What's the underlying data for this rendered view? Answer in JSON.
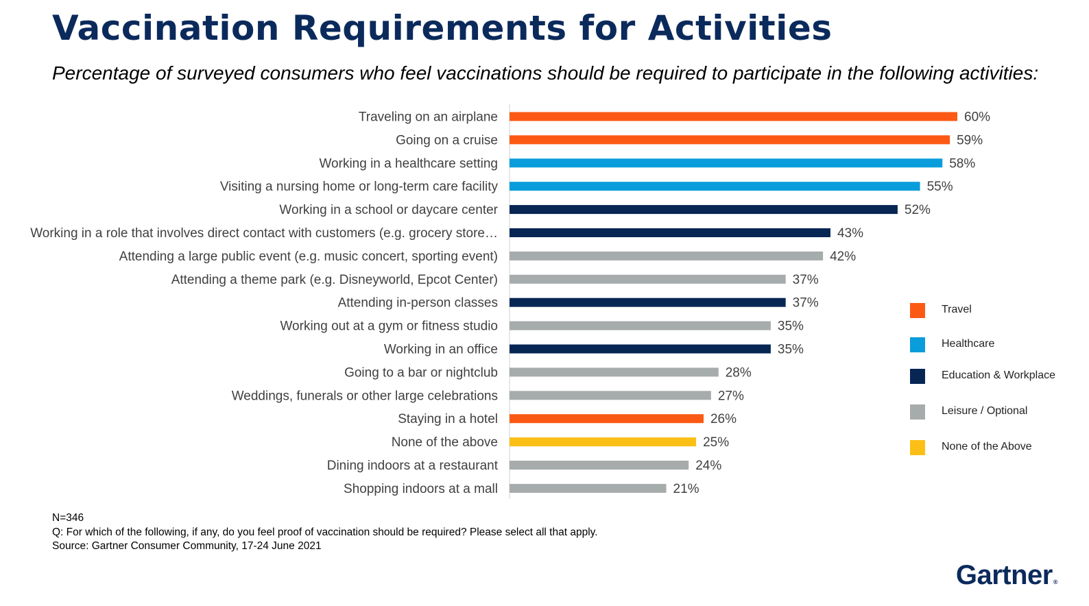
{
  "header": {
    "title": "Vaccination Requirements for Activities",
    "subtitle": "Percentage of surveyed consumers who feel vaccinations should be required to participate in the following activities:"
  },
  "colors": {
    "Travel": "#fc5a14",
    "Healthcare": "#0a9ddb",
    "Education & Workplace": "#072654",
    "Leisure / Optional": "#a6acab",
    "None of the Above": "#fbbf16"
  },
  "chart_data": {
    "type": "bar",
    "orientation": "horizontal",
    "categories": [
      "Traveling on an airplane",
      "Going on a cruise",
      "Working in a healthcare setting",
      "Visiting a nursing home or long-term care facility",
      "Working in a school or daycare center",
      "Working in a role that involves direct contact with customers (e.g. grocery store…",
      "Attending a large public event (e.g. music concert, sporting event)",
      "Attending a theme park (e.g. Disneyworld, Epcot Center)",
      "Attending in-person classes",
      "Working out at a gym or fitness studio",
      "Working in an office",
      "Going to a bar or nightclub",
      "Weddings, funerals or other large celebrations",
      "Staying in a hotel",
      "None of the above",
      "Dining indoors at a restaurant",
      "Shopping indoors at a mall"
    ],
    "values": [
      60,
      59,
      58,
      55,
      52,
      43,
      42,
      37,
      37,
      35,
      35,
      28,
      27,
      26,
      25,
      24,
      21
    ],
    "value_labels": [
      "60%",
      "59%",
      "58%",
      "55%",
      "52%",
      "43%",
      "42%",
      "37%",
      "37%",
      "35%",
      "35%",
      "28%",
      "27%",
      "26%",
      "25%",
      "24%",
      "21%"
    ],
    "groups": [
      "Travel",
      "Travel",
      "Healthcare",
      "Healthcare",
      "Education & Workplace",
      "Education & Workplace",
      "Leisure / Optional",
      "Leisure / Optional",
      "Education & Workplace",
      "Leisure / Optional",
      "Education & Workplace",
      "Leisure / Optional",
      "Leisure / Optional",
      "Travel",
      "None of the Above",
      "Leisure / Optional",
      "Leisure / Optional"
    ],
    "xlim": [
      0,
      70
    ],
    "unit": "%",
    "legend": [
      "Travel",
      "Healthcare",
      "Education & Workplace",
      "Leisure / Optional",
      "None of the Above"
    ],
    "legend_position": "right"
  },
  "footnotes": {
    "n": "N=346",
    "question": "Q: For which of the following, if any, do you feel proof of vaccination should be required? Please select all that apply.",
    "source": "Source: Gartner Consumer Community, 17-24 June 2021"
  },
  "logo": {
    "text": "Gartner",
    "mark": "®"
  }
}
